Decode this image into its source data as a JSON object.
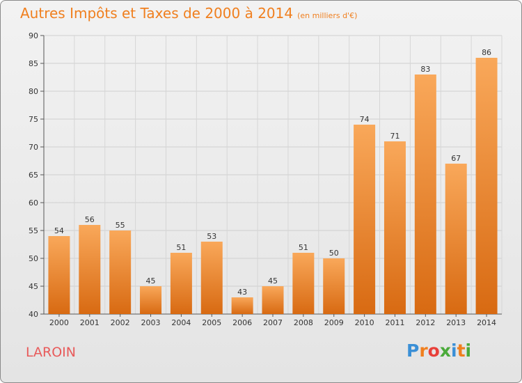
{
  "title": "Autres Impôts et Taxes de 2000 à 2014",
  "unit": "(en milliers d'€)",
  "commune": "LAROIN",
  "logo": {
    "text": "Proxiti",
    "letter_colors": [
      "#3a8fd6",
      "#f07f1e",
      "#e8403a",
      "#4aaa3a",
      "#3a8fd6",
      "#f07f1e",
      "#4aaa3a"
    ]
  },
  "chart_data": {
    "type": "bar",
    "title": "Autres Impôts et Taxes de 2000 à 2014",
    "subtitle": "(en milliers d'€)",
    "categories": [
      "2000",
      "2001",
      "2002",
      "2003",
      "2004",
      "2005",
      "2006",
      "2007",
      "2008",
      "2009",
      "2010",
      "2011",
      "2012",
      "2013",
      "2014"
    ],
    "values": [
      54,
      56,
      55,
      45,
      51,
      53,
      43,
      45,
      51,
      50,
      74,
      71,
      83,
      67,
      86
    ],
    "ylim": [
      40,
      90
    ],
    "yticks": [
      40,
      45,
      50,
      55,
      60,
      65,
      70,
      75,
      80,
      85,
      90
    ],
    "grid": true,
    "bar_color": "#f07f1e"
  }
}
